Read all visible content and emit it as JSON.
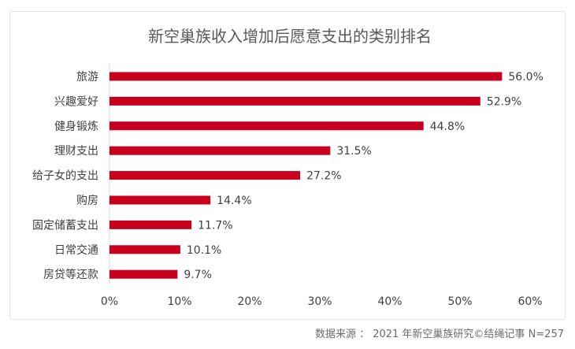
{
  "chart_data": {
    "type": "bar",
    "orientation": "horizontal",
    "title": "新空巢族收入增加后愿意支出的类别排名",
    "categories": [
      "旅游",
      "兴趣爱好",
      "健身锻炼",
      "理财支出",
      "给子女的支出",
      "购房",
      "固定储蓄支出",
      "日常交通",
      "房贷等还款"
    ],
    "values": [
      56.0,
      52.9,
      44.8,
      31.5,
      27.2,
      14.4,
      11.7,
      10.1,
      9.7
    ],
    "data_labels": [
      "56.0%",
      "52.9%",
      "44.8%",
      "31.5%",
      "27.2%",
      "14.4%",
      "11.7%",
      "10.1%",
      "9.7%"
    ],
    "x_ticks": [
      0,
      10,
      20,
      30,
      40,
      50,
      60
    ],
    "x_tick_labels": [
      "0%",
      "10%",
      "20%",
      "30%",
      "40%",
      "50%",
      "60%"
    ],
    "xlim": [
      0,
      60
    ],
    "grid": false,
    "legend": "none",
    "bar_color": "#c8001e"
  },
  "source": "数据来源 ： 2021 年新空巢族研究©结绳记事  N=257"
}
